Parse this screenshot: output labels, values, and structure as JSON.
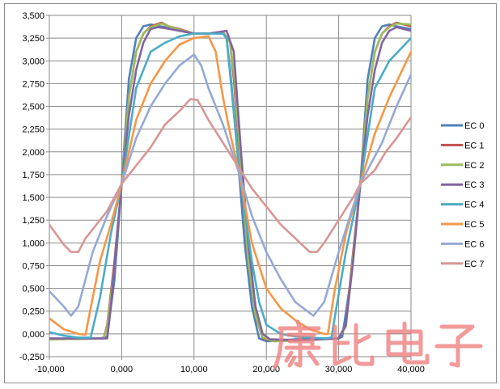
{
  "chart_data": {
    "type": "line",
    "title": "",
    "xlabel": "",
    "ylabel": "",
    "xlim": [
      -10,
      40
    ],
    "ylim": [
      -0.25,
      3.5
    ],
    "x_ticks": [
      {
        "v": -10,
        "label": "-10,000"
      },
      {
        "v": 0,
        "label": "0,000"
      },
      {
        "v": 10,
        "label": "10,000"
      },
      {
        "v": 20,
        "label": "20,000"
      },
      {
        "v": 30,
        "label": "30,000"
      },
      {
        "v": 40,
        "label": "40,000"
      }
    ],
    "y_ticks": [
      {
        "v": -0.25,
        "label": "-0,250"
      },
      {
        "v": 0,
        "label": "0,000"
      },
      {
        "v": 0.25,
        "label": "0,250"
      },
      {
        "v": 0.5,
        "label": "0,500"
      },
      {
        "v": 0.75,
        "label": "0,750"
      },
      {
        "v": 1.0,
        "label": "1,000"
      },
      {
        "v": 1.25,
        "label": "1,250"
      },
      {
        "v": 1.5,
        "label": "1,500"
      },
      {
        "v": 1.75,
        "label": "1,750"
      },
      {
        "v": 2.0,
        "label": "2,000"
      },
      {
        "v": 2.25,
        "label": "2,250"
      },
      {
        "v": 2.5,
        "label": "2,500"
      },
      {
        "v": 2.75,
        "label": "2,750"
      },
      {
        "v": 3.0,
        "label": "3,000"
      },
      {
        "v": 3.25,
        "label": "3,250"
      },
      {
        "v": 3.5,
        "label": "3,500"
      }
    ],
    "grid": true,
    "legend_position": "right",
    "series": [
      {
        "name": "EC 0",
        "color": "#4f81bd",
        "points": [
          [
            -10,
            -0.05
          ],
          [
            -3,
            -0.05
          ],
          [
            -2,
            -0.03
          ],
          [
            -1,
            0.6
          ],
          [
            0,
            1.65
          ],
          [
            1,
            2.8
          ],
          [
            2,
            3.25
          ],
          [
            3,
            3.38
          ],
          [
            4,
            3.4
          ],
          [
            6,
            3.37
          ],
          [
            8,
            3.33
          ],
          [
            10,
            3.3
          ],
          [
            12,
            3.3
          ],
          [
            14,
            3.3
          ],
          [
            14.5,
            3.25
          ],
          [
            15,
            2.9
          ],
          [
            16,
            2.0
          ],
          [
            17,
            1.0
          ],
          [
            18,
            0.3
          ],
          [
            19,
            -0.05
          ],
          [
            20,
            -0.08
          ],
          [
            22,
            -0.07
          ],
          [
            26,
            -0.05
          ],
          [
            30,
            -0.05
          ],
          [
            30.5,
            -0.03
          ],
          [
            31.5,
            0.5
          ],
          [
            33,
            1.65
          ],
          [
            34,
            2.8
          ],
          [
            35,
            3.25
          ],
          [
            36,
            3.38
          ],
          [
            37,
            3.4
          ],
          [
            38,
            3.38
          ],
          [
            40,
            3.35
          ]
        ]
      },
      {
        "name": "EC 1",
        "color": "#c0504d",
        "points": [
          [
            -10,
            -0.06
          ],
          [
            -2.5,
            -0.05
          ],
          [
            -2,
            0.1
          ],
          [
            -1,
            0.8
          ],
          [
            0,
            1.65
          ],
          [
            1,
            2.6
          ],
          [
            2,
            3.1
          ],
          [
            3,
            3.3
          ],
          [
            4,
            3.38
          ],
          [
            5.5,
            3.42
          ],
          [
            6.5,
            3.38
          ],
          [
            8,
            3.35
          ],
          [
            10,
            3.3
          ],
          [
            12,
            3.3
          ],
          [
            14,
            3.32
          ],
          [
            15,
            3.2
          ],
          [
            15.5,
            2.8
          ],
          [
            16.5,
            1.75
          ],
          [
            17.5,
            0.8
          ],
          [
            18.5,
            0.2
          ],
          [
            19.5,
            -0.05
          ],
          [
            21,
            -0.08
          ],
          [
            25,
            -0.07
          ],
          [
            30,
            -0.05
          ],
          [
            31,
            0.1
          ],
          [
            32,
            0.9
          ],
          [
            33,
            1.65
          ],
          [
            34,
            2.6
          ],
          [
            35,
            3.1
          ],
          [
            36,
            3.3
          ],
          [
            37,
            3.38
          ],
          [
            38,
            3.42
          ],
          [
            40,
            3.38
          ]
        ]
      },
      {
        "name": "EC 2",
        "color": "#9bbb59",
        "points": [
          [
            -10,
            -0.06
          ],
          [
            -2.5,
            -0.05
          ],
          [
            -2,
            0.08
          ],
          [
            -1,
            0.75
          ],
          [
            0,
            1.65
          ],
          [
            1,
            2.6
          ],
          [
            2,
            3.1
          ],
          [
            3,
            3.3
          ],
          [
            4,
            3.37
          ],
          [
            5.5,
            3.41
          ],
          [
            6.5,
            3.38
          ],
          [
            8,
            3.34
          ],
          [
            10,
            3.3
          ],
          [
            12,
            3.3
          ],
          [
            14,
            3.32
          ],
          [
            15,
            3.2
          ],
          [
            15.6,
            2.8
          ],
          [
            16.5,
            1.8
          ],
          [
            17.5,
            0.8
          ],
          [
            18.5,
            0.2
          ],
          [
            19.5,
            -0.04
          ],
          [
            21,
            -0.08
          ],
          [
            25,
            -0.07
          ],
          [
            30,
            -0.05
          ],
          [
            31,
            0.08
          ],
          [
            32,
            0.85
          ],
          [
            33,
            1.65
          ],
          [
            34,
            2.6
          ],
          [
            35,
            3.1
          ],
          [
            36,
            3.3
          ],
          [
            37,
            3.37
          ],
          [
            38,
            3.41
          ],
          [
            40,
            3.4
          ]
        ]
      },
      {
        "name": "EC 3",
        "color": "#8064a2",
        "points": [
          [
            -10,
            -0.05
          ],
          [
            -2,
            -0.05
          ],
          [
            -1.5,
            0.3
          ],
          [
            -0.5,
            1.2
          ],
          [
            0,
            1.65
          ],
          [
            1,
            2.4
          ],
          [
            2,
            2.9
          ],
          [
            3,
            3.2
          ],
          [
            4,
            3.35
          ],
          [
            5,
            3.37
          ],
          [
            6,
            3.36
          ],
          [
            8,
            3.33
          ],
          [
            10,
            3.3
          ],
          [
            12,
            3.3
          ],
          [
            14.5,
            3.33
          ],
          [
            15.5,
            3.1
          ],
          [
            16.5,
            2.0
          ],
          [
            17.5,
            1.0
          ],
          [
            18.5,
            0.3
          ],
          [
            19.5,
            0.0
          ],
          [
            20.5,
            -0.06
          ],
          [
            25,
            -0.07
          ],
          [
            30,
            -0.05
          ],
          [
            31,
            0.1
          ],
          [
            32,
            0.8
          ],
          [
            33,
            1.65
          ],
          [
            34,
            2.4
          ],
          [
            35,
            2.9
          ],
          [
            36,
            3.2
          ],
          [
            37,
            3.33
          ],
          [
            38,
            3.37
          ],
          [
            40,
            3.33
          ]
        ]
      },
      {
        "name": "EC 4",
        "color": "#4bacc6",
        "points": [
          [
            -10,
            0.02
          ],
          [
            -8,
            -0.02
          ],
          [
            -6,
            -0.04
          ],
          [
            -4.3,
            -0.04
          ],
          [
            -3,
            0.4
          ],
          [
            -1.5,
            1.1
          ],
          [
            0,
            1.65
          ],
          [
            2,
            2.7
          ],
          [
            4,
            3.1
          ],
          [
            6,
            3.2
          ],
          [
            8,
            3.27
          ],
          [
            10,
            3.3
          ],
          [
            12,
            3.3
          ],
          [
            14,
            3.3
          ],
          [
            14.5,
            3.25
          ],
          [
            15.3,
            2.6
          ],
          [
            16.3,
            1.75
          ],
          [
            18,
            0.8
          ],
          [
            19,
            0.35
          ],
          [
            20,
            0.1
          ],
          [
            22,
            0.0
          ],
          [
            24,
            -0.03
          ],
          [
            28,
            -0.05
          ],
          [
            29,
            -0.04
          ],
          [
            29.5,
            0.2
          ],
          [
            31,
            0.9
          ],
          [
            33,
            1.65
          ],
          [
            35,
            2.7
          ],
          [
            37,
            3.0
          ],
          [
            40,
            3.25
          ]
        ]
      },
      {
        "name": "EC 5",
        "color": "#f79646",
        "points": [
          [
            -10,
            0.17
          ],
          [
            -8,
            0.05
          ],
          [
            -6,
            0.0
          ],
          [
            -5,
            -0.01
          ],
          [
            -4.5,
            0.2
          ],
          [
            -3,
            0.8
          ],
          [
            -1.5,
            1.2
          ],
          [
            0,
            1.65
          ],
          [
            2,
            2.35
          ],
          [
            4,
            2.75
          ],
          [
            6,
            3.0
          ],
          [
            8,
            3.18
          ],
          [
            10,
            3.25
          ],
          [
            12,
            3.27
          ],
          [
            13,
            3.1
          ],
          [
            14,
            2.6
          ],
          [
            15,
            2.2
          ],
          [
            16.3,
            1.75
          ],
          [
            18,
            1.0
          ],
          [
            20,
            0.5
          ],
          [
            22,
            0.28
          ],
          [
            24,
            0.15
          ],
          [
            26,
            0.05
          ],
          [
            28,
            0.0
          ],
          [
            28.5,
            0.0
          ],
          [
            29.5,
            0.5
          ],
          [
            31,
            1.1
          ],
          [
            33,
            1.65
          ],
          [
            35,
            2.2
          ],
          [
            37,
            2.6
          ],
          [
            40,
            3.1
          ]
        ]
      },
      {
        "name": "EC 6",
        "color": "#95a9d6",
        "points": [
          [
            -10,
            0.47
          ],
          [
            -8,
            0.3
          ],
          [
            -7,
            0.2
          ],
          [
            -6,
            0.3
          ],
          [
            -4,
            0.9
          ],
          [
            -2,
            1.3
          ],
          [
            0,
            1.65
          ],
          [
            2,
            2.15
          ],
          [
            4,
            2.5
          ],
          [
            6,
            2.75
          ],
          [
            8,
            2.95
          ],
          [
            10,
            3.07
          ],
          [
            11,
            2.95
          ],
          [
            12,
            2.7
          ],
          [
            14,
            2.3
          ],
          [
            16.3,
            1.75
          ],
          [
            18,
            1.3
          ],
          [
            20,
            0.9
          ],
          [
            22,
            0.6
          ],
          [
            24,
            0.35
          ],
          [
            26.5,
            0.2
          ],
          [
            28,
            0.35
          ],
          [
            30,
            0.9
          ],
          [
            32,
            1.4
          ],
          [
            33,
            1.65
          ],
          [
            36,
            2.1
          ],
          [
            38,
            2.5
          ],
          [
            40,
            2.85
          ]
        ]
      },
      {
        "name": "EC 7",
        "color": "#d99694",
        "points": [
          [
            -10,
            1.2
          ],
          [
            -8,
            0.98
          ],
          [
            -7,
            0.9
          ],
          [
            -6,
            0.9
          ],
          [
            -5,
            1.05
          ],
          [
            -2,
            1.35
          ],
          [
            0,
            1.65
          ],
          [
            2,
            1.85
          ],
          [
            4,
            2.05
          ],
          [
            6,
            2.3
          ],
          [
            8,
            2.45
          ],
          [
            9.5,
            2.58
          ],
          [
            10.5,
            2.57
          ],
          [
            12,
            2.35
          ],
          [
            14,
            2.1
          ],
          [
            16,
            1.85
          ],
          [
            18,
            1.6
          ],
          [
            20,
            1.4
          ],
          [
            22,
            1.2
          ],
          [
            24,
            1.05
          ],
          [
            26,
            0.9
          ],
          [
            27,
            0.9
          ],
          [
            28,
            1.0
          ],
          [
            30,
            1.25
          ],
          [
            32,
            1.5
          ],
          [
            33,
            1.65
          ],
          [
            35,
            1.8
          ],
          [
            36.5,
            2.0
          ],
          [
            38,
            2.15
          ],
          [
            40,
            2.38
          ]
        ]
      }
    ]
  },
  "watermark": "康比电子"
}
